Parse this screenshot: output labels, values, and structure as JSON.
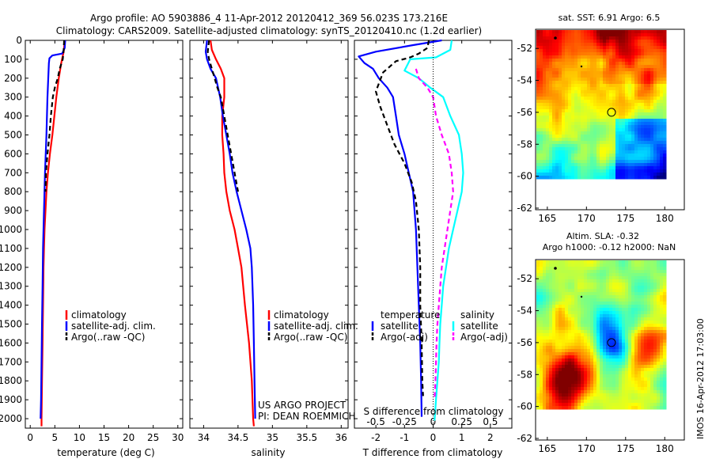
{
  "title": {
    "line1": "Argo profile: AO 5903886_4 11-Apr-2012 20120412_369 56.023S 173.216E",
    "line2": "Climatology: CARS2009. Satellite-adjusted climatology: synTS_20120410.nc (1.2d earlier)"
  },
  "credit": {
    "line1": "US ARGO PROJECT",
    "line2": "PI: DEAN ROEMMICH"
  },
  "timestamp": "IMOS 16-Apr-2012 17:03:00",
  "maps": {
    "sst": {
      "title": "sat. SST: 6.91  Argo: 6.5"
    },
    "sla": {
      "title1": "Altim. SLA: -0.32",
      "title2": "Argo h1000: -0.12  h2000: NaN"
    },
    "lon_ticks": [
      "165",
      "170",
      "175",
      "180"
    ],
    "lat_ticks": [
      "-52",
      "-54",
      "-56",
      "-58",
      "-60",
      "-62"
    ],
    "marker": {
      "lon": 173.2,
      "lat": -56.0
    }
  },
  "chart_data": [
    {
      "type": "line",
      "name": "temperature",
      "xlabel": "temperature (deg C)",
      "xlim": [
        -1,
        31
      ],
      "ylim": [
        0,
        2050
      ],
      "x_ticks": [
        "0",
        "5",
        "10",
        "15",
        "20",
        "25",
        "30"
      ],
      "y_ticks": [
        "0",
        "100",
        "200",
        "300",
        "400",
        "500",
        "600",
        "700",
        "800",
        "900",
        "1000",
        "1100",
        "1200",
        "1300",
        "1400",
        "1500",
        "1600",
        "1700",
        "1800",
        "1900",
        "2000"
      ],
      "legend": [
        "climatology",
        "satellite-adj. clim.",
        "Argo(..raw -QC)"
      ],
      "series": [
        {
          "name": "climatology",
          "color": "#ff0000",
          "points": [
            [
              7.0,
              5
            ],
            [
              6.8,
              60
            ],
            [
              6.3,
              120
            ],
            [
              5.8,
              200
            ],
            [
              5.3,
              300
            ],
            [
              4.9,
              400
            ],
            [
              4.5,
              500
            ],
            [
              4.0,
              600
            ],
            [
              3.6,
              700
            ],
            [
              3.3,
              800
            ],
            [
              3.1,
              900
            ],
            [
              2.9,
              1000
            ],
            [
              2.8,
              1100
            ],
            [
              2.7,
              1200
            ],
            [
              2.6,
              1400
            ],
            [
              2.5,
              1600
            ],
            [
              2.4,
              1800
            ],
            [
              2.3,
              2000
            ],
            [
              2.3,
              2040
            ]
          ]
        },
        {
          "name": "satellite-adj. clim.",
          "color": "#0000ff",
          "points": [
            [
              7.1,
              0
            ],
            [
              7.0,
              40
            ],
            [
              6.5,
              70
            ],
            [
              4.5,
              80
            ],
            [
              3.9,
              95
            ],
            [
              3.8,
              120
            ],
            [
              3.7,
              180
            ],
            [
              3.5,
              300
            ],
            [
              3.3,
              500
            ],
            [
              3.0,
              700
            ],
            [
              2.8,
              900
            ],
            [
              2.6,
              1100
            ],
            [
              2.5,
              1300
            ],
            [
              2.4,
              1500
            ],
            [
              2.3,
              1700
            ],
            [
              2.2,
              1900
            ],
            [
              2.1,
              2000
            ]
          ]
        },
        {
          "name": "Argo(..raw -QC)",
          "color": "#000000",
          "dash": true,
          "points": [
            [
              6.9,
              0
            ],
            [
              6.8,
              50
            ],
            [
              6.6,
              100
            ],
            [
              6.0,
              150
            ],
            [
              5.6,
              200
            ],
            [
              5.0,
              250
            ],
            [
              4.6,
              300
            ],
            [
              4.2,
              400
            ],
            [
              3.9,
              500
            ],
            [
              3.5,
              600
            ],
            [
              3.2,
              700
            ],
            [
              3.1,
              800
            ]
          ]
        }
      ]
    },
    {
      "type": "line",
      "name": "salinity",
      "xlabel": "salinity",
      "xlim": [
        33.8,
        36.1
      ],
      "ylim": [
        0,
        2050
      ],
      "x_ticks": [
        "34",
        "34.5",
        "35",
        "35.5",
        "36"
      ],
      "legend": [
        "climatology",
        "satellite-adj. clim.",
        "Argo(..raw -QC)"
      ],
      "series": [
        {
          "name": "climatology",
          "color": "#ff0000",
          "points": [
            [
              34.1,
              0
            ],
            [
              34.12,
              50
            ],
            [
              34.18,
              100
            ],
            [
              34.25,
              150
            ],
            [
              34.3,
              200
            ],
            [
              34.3,
              300
            ],
            [
              34.27,
              400
            ],
            [
              34.27,
              500
            ],
            [
              34.29,
              600
            ],
            [
              34.3,
              700
            ],
            [
              34.33,
              800
            ],
            [
              34.38,
              900
            ],
            [
              34.45,
              1000
            ],
            [
              34.5,
              1100
            ],
            [
              34.55,
              1200
            ],
            [
              34.6,
              1400
            ],
            [
              34.66,
              1600
            ],
            [
              34.7,
              1800
            ],
            [
              34.72,
              2000
            ],
            [
              34.73,
              2040
            ]
          ]
        },
        {
          "name": "satellite-adj. clim.",
          "color": "#0000ff",
          "points": [
            [
              34.05,
              0
            ],
            [
              34.03,
              60
            ],
            [
              34.05,
              100
            ],
            [
              34.1,
              150
            ],
            [
              34.18,
              200
            ],
            [
              34.24,
              300
            ],
            [
              34.28,
              400
            ],
            [
              34.33,
              500
            ],
            [
              34.38,
              600
            ],
            [
              34.42,
              700
            ],
            [
              34.48,
              800
            ],
            [
              34.55,
              900
            ],
            [
              34.62,
              1000
            ],
            [
              34.68,
              1100
            ],
            [
              34.7,
              1200
            ],
            [
              34.72,
              1400
            ],
            [
              34.73,
              1600
            ],
            [
              34.74,
              1800
            ],
            [
              34.75,
              2000
            ]
          ]
        },
        {
          "name": "Argo(..raw -QC)",
          "color": "#000000",
          "dash": true,
          "points": [
            [
              34.08,
              0
            ],
            [
              34.06,
              60
            ],
            [
              34.08,
              100
            ],
            [
              34.12,
              150
            ],
            [
              34.16,
              200
            ],
            [
              34.2,
              250
            ],
            [
              34.25,
              300
            ],
            [
              34.3,
              400
            ],
            [
              34.35,
              500
            ],
            [
              34.4,
              600
            ],
            [
              34.45,
              700
            ],
            [
              34.5,
              800
            ]
          ]
        }
      ]
    },
    {
      "type": "line",
      "name": "difference",
      "xlabel": "T difference from climatology",
      "xlabel_top": "S difference from climatology",
      "xlim": [
        -2.75,
        2.75
      ],
      "ylim": [
        0,
        2050
      ],
      "x_ticks": [
        "-2",
        "-1",
        "0",
        "1",
        "2"
      ],
      "x_ticks_s": [
        "-0.5",
        "-0.25",
        "0",
        "0.25",
        "0.5"
      ],
      "legend_left_title": "temperature",
      "legend_right_title": "salinity",
      "legend_left": [
        "satellite",
        "Argo(-adj)"
      ],
      "legend_right": [
        "satellite",
        "Argo(-adj)"
      ],
      "series": [
        {
          "name": "T satellite",
          "color": "#0000ff",
          "points": [
            [
              0.3,
              0
            ],
            [
              -0.7,
              25
            ],
            [
              -2.0,
              60
            ],
            [
              -2.6,
              85
            ],
            [
              -2.4,
              120
            ],
            [
              -2.1,
              150
            ],
            [
              -1.9,
              200
            ],
            [
              -1.6,
              250
            ],
            [
              -1.4,
              300
            ],
            [
              -1.3,
              400
            ],
            [
              -1.2,
              500
            ],
            [
              -1.0,
              600
            ],
            [
              -0.85,
              700
            ],
            [
              -0.7,
              800
            ],
            [
              -0.6,
              1000
            ],
            [
              -0.55,
              1200
            ],
            [
              -0.5,
              1400
            ],
            [
              -0.45,
              1600
            ],
            [
              -0.42,
              1800
            ],
            [
              -0.4,
              1990
            ]
          ]
        },
        {
          "name": "T Argo(-adj)",
          "color": "#000000",
          "dash": true,
          "points": [
            [
              -0.15,
              0
            ],
            [
              -0.2,
              40
            ],
            [
              -0.5,
              70
            ],
            [
              -0.8,
              90
            ],
            [
              -1.3,
              110
            ],
            [
              -1.75,
              170
            ],
            [
              -2.0,
              270
            ],
            [
              -1.85,
              350
            ],
            [
              -1.6,
              450
            ],
            [
              -1.35,
              550
            ],
            [
              -1.0,
              650
            ],
            [
              -0.75,
              750
            ],
            [
              -0.6,
              850
            ],
            [
              -0.5,
              1000
            ],
            [
              -0.45,
              1200
            ],
            [
              -0.45,
              1400
            ],
            [
              -0.4,
              1600
            ],
            [
              -0.38,
              1800
            ],
            [
              -0.35,
              1880
            ]
          ]
        },
        {
          "name": "S satellite",
          "color": "#00ffff",
          "points": [
            [
              0.65,
              0
            ],
            [
              0.6,
              50
            ],
            [
              0.1,
              90
            ],
            [
              -0.8,
              100
            ],
            [
              -1.0,
              160
            ],
            [
              -0.5,
              200
            ],
            [
              -0.1,
              250
            ],
            [
              0.35,
              300
            ],
            [
              0.6,
              400
            ],
            [
              0.9,
              500
            ],
            [
              1.0,
              600
            ],
            [
              1.05,
              700
            ],
            [
              1.0,
              800
            ],
            [
              0.85,
              900
            ],
            [
              0.7,
              1000
            ],
            [
              0.55,
              1100
            ],
            [
              0.45,
              1200
            ],
            [
              0.35,
              1300
            ],
            [
              0.3,
              1400
            ],
            [
              0.25,
              1500
            ],
            [
              0.22,
              1600
            ],
            [
              0.2,
              1700
            ],
            [
              0.15,
              1800
            ],
            [
              0.1,
              1900
            ],
            [
              0.05,
              2010
            ]
          ]
        },
        {
          "name": "S Argo(-adj)",
          "color": "#ff00ff",
          "dash": true,
          "points": [
            [
              -0.6,
              150
            ],
            [
              -0.5,
              200
            ],
            [
              -0.2,
              250
            ],
            [
              0.0,
              300
            ],
            [
              0.1,
              400
            ],
            [
              0.3,
              500
            ],
            [
              0.55,
              600
            ],
            [
              0.65,
              700
            ],
            [
              0.7,
              800
            ],
            [
              0.6,
              900
            ],
            [
              0.5,
              1000
            ],
            [
              0.4,
              1100
            ],
            [
              0.3,
              1200
            ],
            [
              0.25,
              1300
            ],
            [
              0.2,
              1400
            ],
            [
              0.15,
              1500
            ],
            [
              0.12,
              1600
            ],
            [
              0.1,
              1700
            ],
            [
              0.08,
              1800
            ],
            [
              0.05,
              1900
            ]
          ]
        },
        {
          "name": "zero",
          "color": "#000000",
          "dotted": true,
          "points": [
            [
              0,
              0
            ],
            [
              0,
              2050
            ]
          ]
        }
      ]
    }
  ]
}
